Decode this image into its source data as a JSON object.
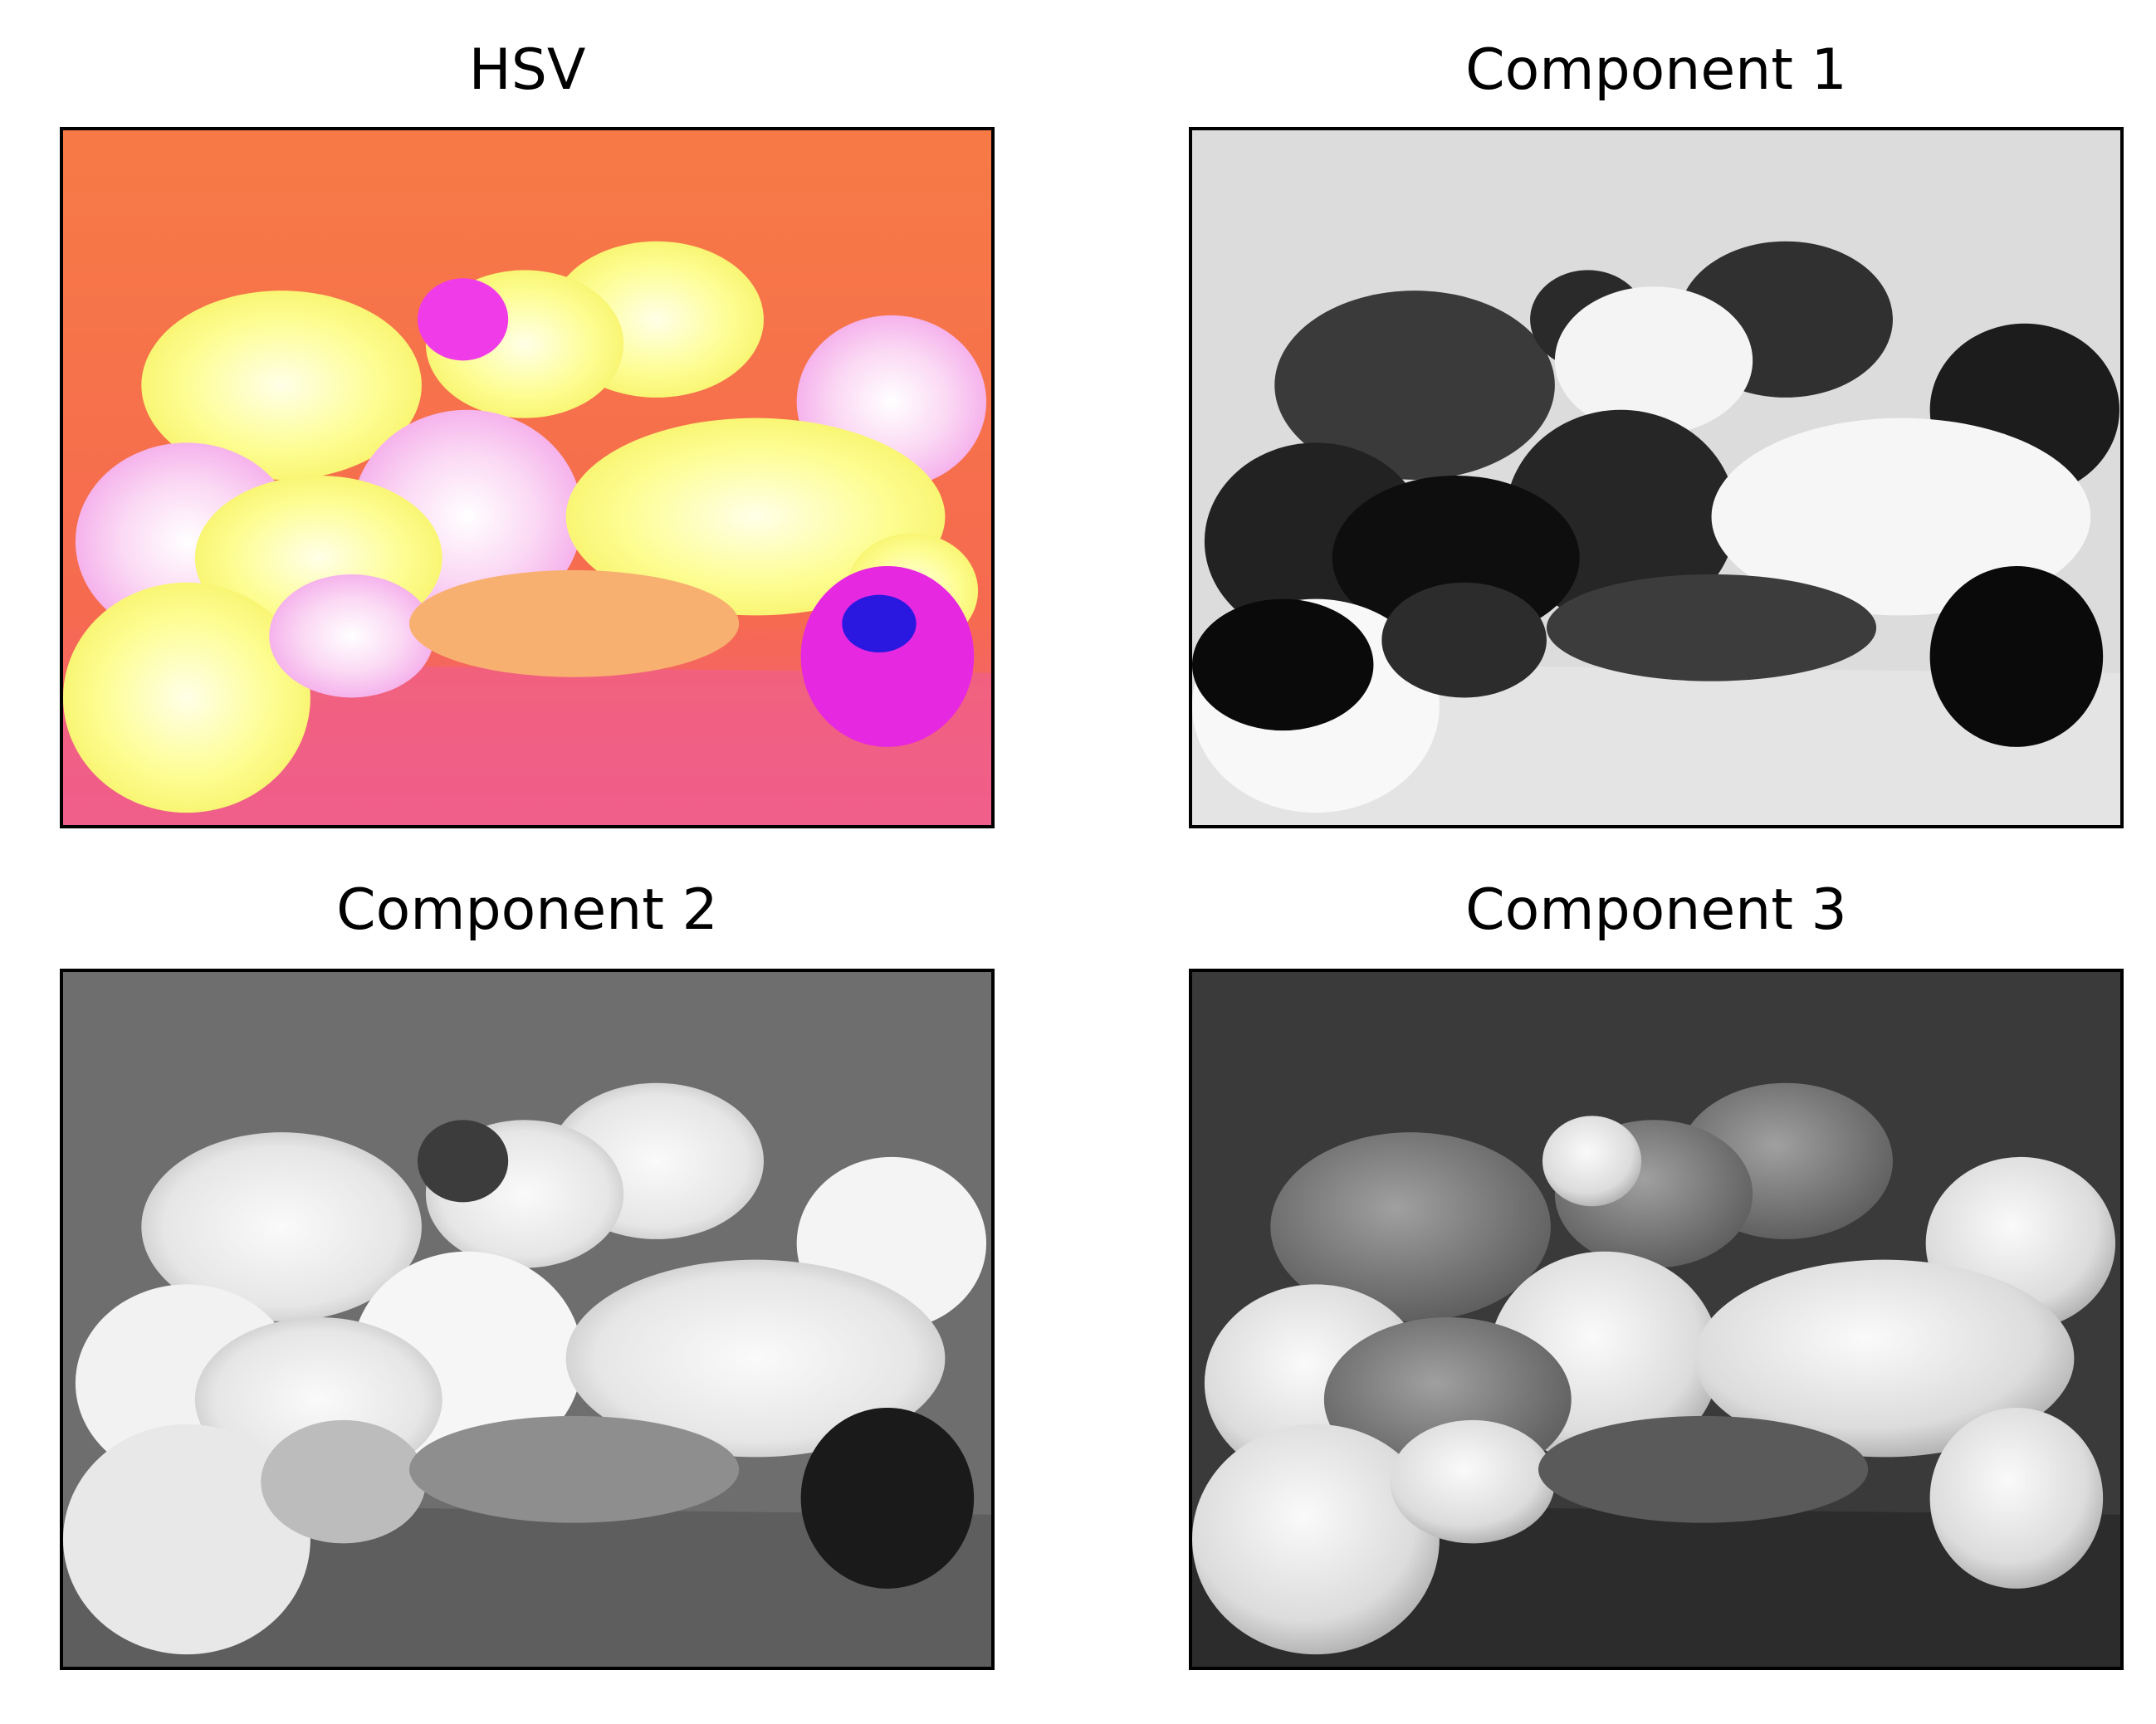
{
  "figure": {
    "panels": [
      {
        "id": "hsv",
        "title": "HSV",
        "colormap": "hsv-false-color"
      },
      {
        "id": "component-1",
        "title": "Component 1",
        "colormap": "gray"
      },
      {
        "id": "component-2",
        "title": "Component 2",
        "colormap": "gray"
      },
      {
        "id": "component-3",
        "title": "Component 3",
        "colormap": "gray"
      }
    ]
  },
  "colors": {
    "hsv_background": "#f77848",
    "hsv_pepper": "#fdfd96",
    "hsv_onion": "#f040e8",
    "hsv_garlic": "#e020e0",
    "c1_background": "#dedede",
    "c2_background": "#707070",
    "c3_background": "#3a3a3a"
  }
}
